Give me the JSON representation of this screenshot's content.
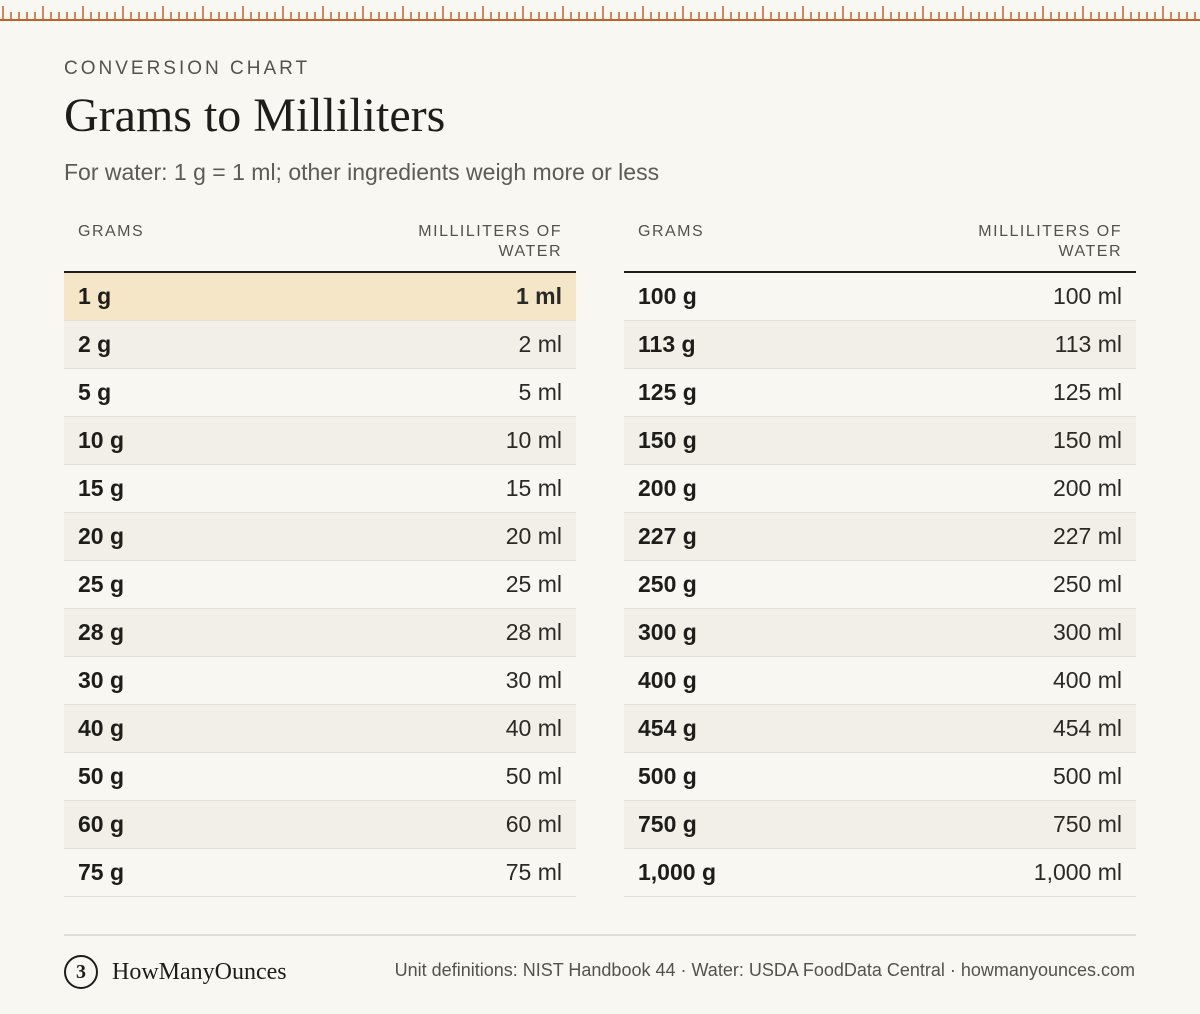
{
  "header": {
    "eyebrow": "CONVERSION CHART",
    "title": "Grams to Milliliters",
    "subtitle": "For water: 1 g = 1 ml; other ingredients weigh more or less"
  },
  "table": {
    "col_grams": "GRAMS",
    "col_ml": "MILLILITERS OF WATER",
    "left_rows": [
      {
        "grams": "1 g",
        "ml": "1 ml"
      },
      {
        "grams": "2 g",
        "ml": "2 ml"
      },
      {
        "grams": "5 g",
        "ml": "5 ml"
      },
      {
        "grams": "10 g",
        "ml": "10 ml"
      },
      {
        "grams": "15 g",
        "ml": "15 ml"
      },
      {
        "grams": "20 g",
        "ml": "20 ml"
      },
      {
        "grams": "25 g",
        "ml": "25 ml"
      },
      {
        "grams": "28 g",
        "ml": "28 ml"
      },
      {
        "grams": "30 g",
        "ml": "30 ml"
      },
      {
        "grams": "40 g",
        "ml": "40 ml"
      },
      {
        "grams": "50 g",
        "ml": "50 ml"
      },
      {
        "grams": "60 g",
        "ml": "60 ml"
      },
      {
        "grams": "75 g",
        "ml": "75 ml"
      }
    ],
    "right_rows": [
      {
        "grams": "100 g",
        "ml": "100 ml"
      },
      {
        "grams": "113 g",
        "ml": "113 ml"
      },
      {
        "grams": "125 g",
        "ml": "125 ml"
      },
      {
        "grams": "150 g",
        "ml": "150 ml"
      },
      {
        "grams": "200 g",
        "ml": "200 ml"
      },
      {
        "grams": "227 g",
        "ml": "227 ml"
      },
      {
        "grams": "250 g",
        "ml": "250 ml"
      },
      {
        "grams": "300 g",
        "ml": "300 ml"
      },
      {
        "grams": "400 g",
        "ml": "400 ml"
      },
      {
        "grams": "454 g",
        "ml": "454 ml"
      },
      {
        "grams": "500 g",
        "ml": "500 ml"
      },
      {
        "grams": "750 g",
        "ml": "750 ml"
      },
      {
        "grams": "1,000 g",
        "ml": "1,000 ml"
      }
    ]
  },
  "footer": {
    "logo_glyph": "3",
    "brand": "HowManyOunces",
    "sources": "Unit definitions: NIST Handbook 44 · Water: USDA FoodData Central · howmanyounces.com"
  },
  "colors": {
    "background": "#f9f7f2",
    "highlight": "#f4e6c6",
    "alt_row": "#f2efe8",
    "ruler": "#c0622e"
  }
}
